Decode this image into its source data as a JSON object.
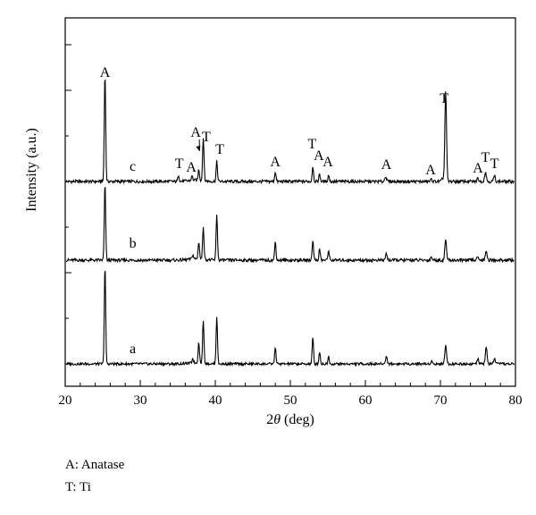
{
  "chart_data": {
    "type": "line",
    "title": "",
    "xlabel": "2θ (deg)",
    "ylabel": "Intensity (a.u.)",
    "xlim": [
      20,
      80
    ],
    "xticks": [
      20,
      30,
      40,
      50,
      60,
      70,
      80
    ],
    "grid": false,
    "legend": [
      {
        "code": "A",
        "text": "A: Anatase"
      },
      {
        "code": "T",
        "text": "T: Ti"
      }
    ],
    "series": [
      {
        "name": "c",
        "peaks": [
          {
            "x": 25.3,
            "h": 1.0
          },
          {
            "x": 35.1,
            "h": 0.06
          },
          {
            "x": 36.9,
            "h": 0.04
          },
          {
            "x": 37.8,
            "h": 0.1
          },
          {
            "x": 38.4,
            "h": 0.4
          },
          {
            "x": 40.2,
            "h": 0.18
          },
          {
            "x": 48.0,
            "h": 0.09
          },
          {
            "x": 53.0,
            "h": 0.14
          },
          {
            "x": 53.9,
            "h": 0.07
          },
          {
            "x": 55.1,
            "h": 0.06
          },
          {
            "x": 62.7,
            "h": 0.05
          },
          {
            "x": 68.8,
            "h": 0.02
          },
          {
            "x": 70.3,
            "h": 0.03
          },
          {
            "x": 70.7,
            "h": 0.82
          },
          {
            "x": 75.0,
            "h": 0.03
          },
          {
            "x": 76.0,
            "h": 0.09
          },
          {
            "x": 77.2,
            "h": 0.05
          }
        ],
        "annotations": [
          {
            "label": "A",
            "x": 25.3
          },
          {
            "label": "T",
            "x": 35.2
          },
          {
            "label": "A",
            "x": 36.8
          },
          {
            "label": "A",
            "x": 37.4,
            "arrow_to": 37.9
          },
          {
            "label": "T",
            "x": 38.8
          },
          {
            "label": "T",
            "x": 40.6
          },
          {
            "label": "A",
            "x": 48.0
          },
          {
            "label": "T",
            "x": 52.9
          },
          {
            "label": "A",
            "x": 53.8
          },
          {
            "label": "A",
            "x": 55.0
          },
          {
            "label": "A",
            "x": 62.8
          },
          {
            "label": "A",
            "x": 68.7
          },
          {
            "label": "T",
            "x": 70.5
          },
          {
            "label": "A",
            "x": 75.0
          },
          {
            "label": "T",
            "x": 76.0
          },
          {
            "label": "T",
            "x": 77.2
          }
        ]
      },
      {
        "name": "b",
        "peaks": [
          {
            "x": 25.3,
            "h": 0.7
          },
          {
            "x": 37.0,
            "h": 0.04
          },
          {
            "x": 37.8,
            "h": 0.16
          },
          {
            "x": 38.4,
            "h": 0.3
          },
          {
            "x": 40.2,
            "h": 0.42
          },
          {
            "x": 48.0,
            "h": 0.17
          },
          {
            "x": 53.0,
            "h": 0.19
          },
          {
            "x": 53.9,
            "h": 0.1
          },
          {
            "x": 55.1,
            "h": 0.09
          },
          {
            "x": 62.8,
            "h": 0.06
          },
          {
            "x": 68.8,
            "h": 0.03
          },
          {
            "x": 70.7,
            "h": 0.19
          },
          {
            "x": 75.0,
            "h": 0.04
          },
          {
            "x": 76.1,
            "h": 0.09
          }
        ]
      },
      {
        "name": "a",
        "peaks": [
          {
            "x": 25.3,
            "h": 1.05
          },
          {
            "x": 37.0,
            "h": 0.05
          },
          {
            "x": 37.8,
            "h": 0.22
          },
          {
            "x": 38.4,
            "h": 0.46
          },
          {
            "x": 40.2,
            "h": 0.51
          },
          {
            "x": 48.0,
            "h": 0.18
          },
          {
            "x": 53.0,
            "h": 0.28
          },
          {
            "x": 53.9,
            "h": 0.13
          },
          {
            "x": 55.1,
            "h": 0.08
          },
          {
            "x": 62.8,
            "h": 0.08
          },
          {
            "x": 68.8,
            "h": 0.03
          },
          {
            "x": 70.7,
            "h": 0.21
          },
          {
            "x": 75.0,
            "h": 0.05
          },
          {
            "x": 76.1,
            "h": 0.18
          },
          {
            "x": 77.2,
            "h": 0.06
          }
        ]
      }
    ]
  }
}
